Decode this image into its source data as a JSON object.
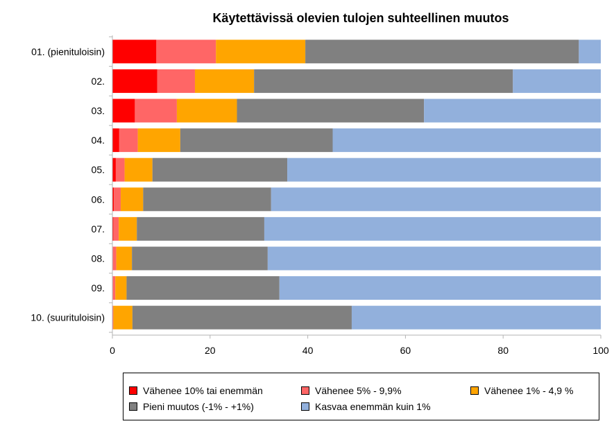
{
  "chart_data": {
    "type": "bar",
    "orientation": "horizontal",
    "stacked": true,
    "title": "Käytettävissä olevien tulojen suhteellinen muutos",
    "categories": [
      "01. (pienituloisin)",
      "02.",
      "03.",
      "04.",
      "05.",
      "06.",
      "07.",
      "08.",
      "09.",
      "10. (suurituloisin)"
    ],
    "xlim": [
      0,
      100
    ],
    "x_ticks": [
      0,
      20,
      40,
      60,
      80,
      100
    ],
    "grid": false,
    "legend_position": "bottom",
    "series": [
      {
        "name": "Vähenee 10% tai enemmän",
        "color": "#ff0000",
        "values": [
          9.0,
          9.2,
          4.6,
          1.4,
          0.7,
          0.3,
          0.2,
          0.1,
          0.1,
          0.0
        ]
      },
      {
        "name": "Vähenee 5% - 9,9%",
        "color": "#ff6666",
        "values": [
          12.2,
          7.7,
          8.6,
          3.8,
          1.8,
          1.4,
          1.1,
          0.7,
          0.5,
          0.2
        ]
      },
      {
        "name": "Vähenee 1% - 4,9 %",
        "color": "#ffa500",
        "values": [
          18.3,
          12.1,
          12.3,
          8.7,
          5.7,
          4.6,
          3.7,
          3.2,
          2.3,
          3.9
        ]
      },
      {
        "name": "Pieni muutos (-1% - +1%)",
        "color": "#808080",
        "values": [
          56.0,
          53.0,
          38.3,
          31.2,
          27.6,
          26.2,
          26.1,
          27.8,
          31.3,
          44.9
        ]
      },
      {
        "name": "Kasvaa enemmän kuin 1%",
        "color": "#92b0dc",
        "values": [
          4.5,
          18.0,
          36.2,
          54.9,
          64.2,
          67.5,
          68.9,
          68.2,
          65.8,
          51.0
        ]
      }
    ]
  }
}
